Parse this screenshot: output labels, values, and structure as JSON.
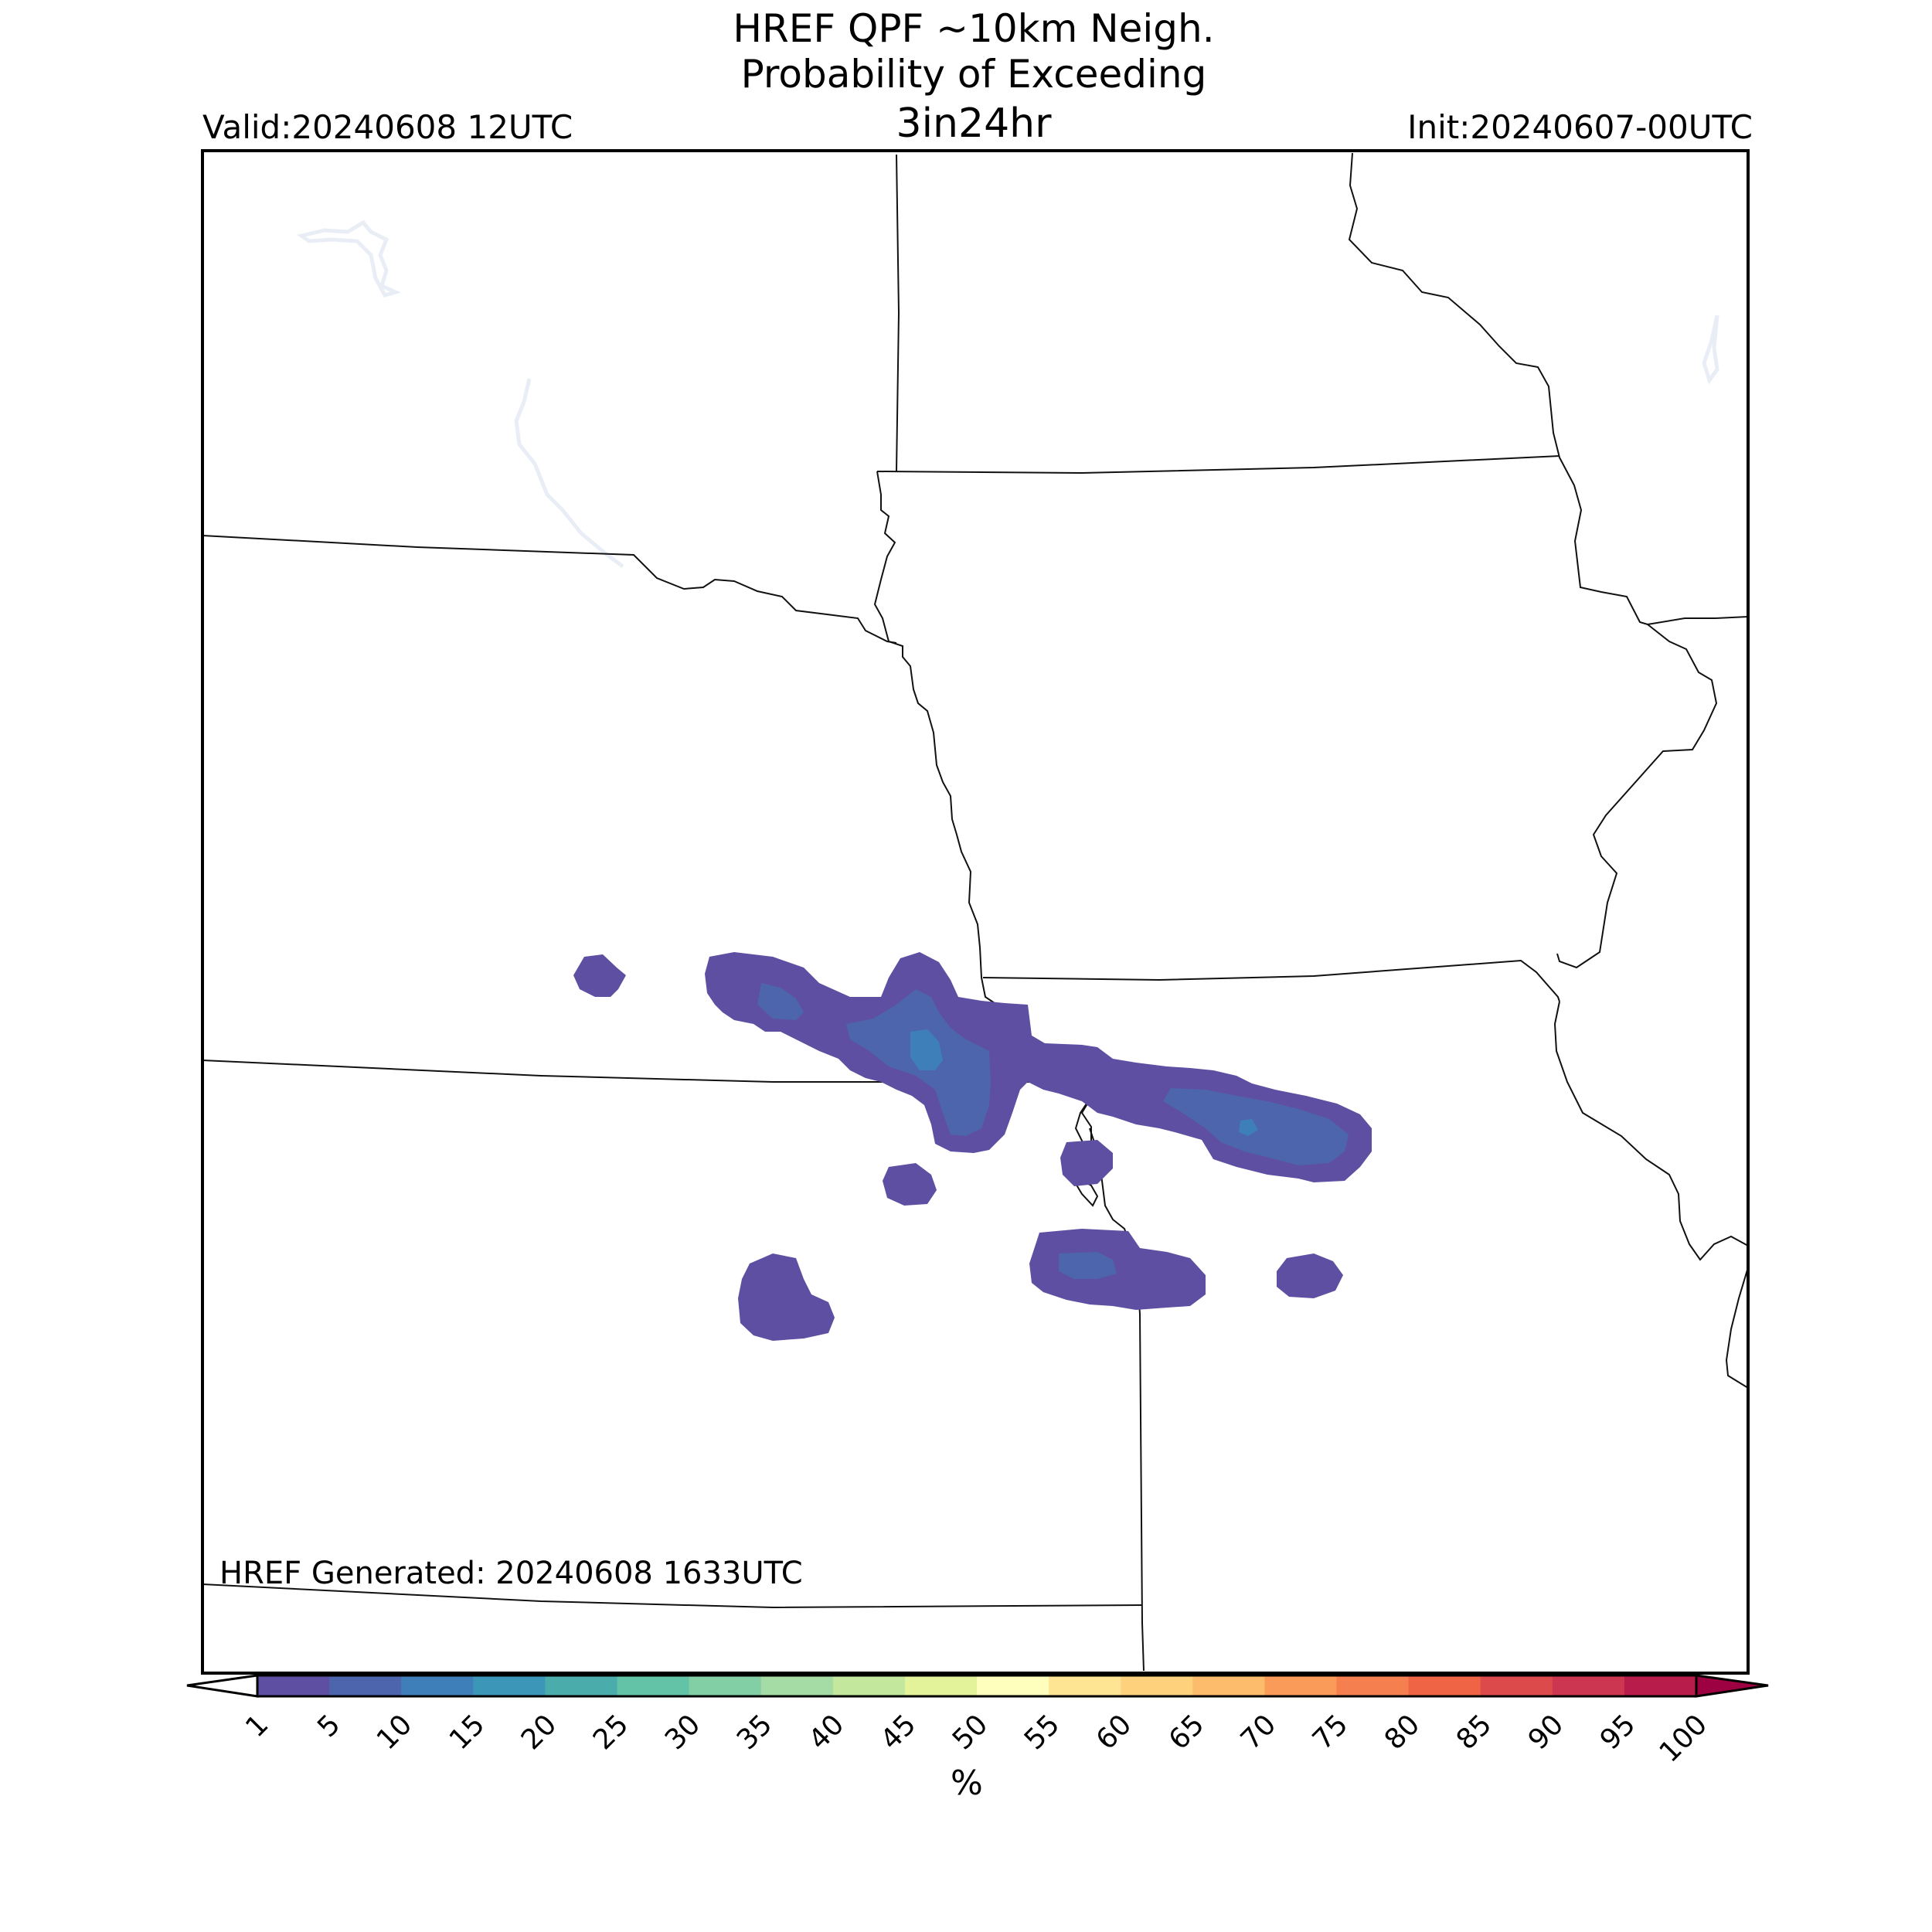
{
  "title": {
    "line1": "HREF QPF ~10km Neigh.",
    "line2": "Probability of Exceeding",
    "line3": "3in24hr"
  },
  "valid_text": "Valid:20240608 12UTC",
  "init_text": "Init:20240607-00UTC",
  "generated_text": "HREF Generated: 20240608 1633UTC",
  "colorbar": {
    "units": "%",
    "ticks": [
      "1",
      "5",
      "10",
      "15",
      "20",
      "25",
      "30",
      "35",
      "40",
      "45",
      "50",
      "55",
      "60",
      "65",
      "70",
      "75",
      "80",
      "85",
      "90",
      "95",
      "100"
    ],
    "colors": [
      "#5e4fa2",
      "#4d65ad",
      "#3f7fb9",
      "#3c96b8",
      "#4bacac",
      "#63c3a6",
      "#83cfa5",
      "#a5dba4",
      "#c4e79e",
      "#e2f399",
      "#fefebd",
      "#fee593",
      "#fed17d",
      "#fdbb6c",
      "#fb9b5a",
      "#f67f4f",
      "#ee6445",
      "#dd4a4c",
      "#cd3650",
      "#b71c4a",
      "#9e0142"
    ],
    "extend_min_color": "#ffffff",
    "extend_max_color": "#9e0142"
  },
  "legend_colors": {
    "prob_1": "#5e4fa2",
    "prob_5": "#4d65ad",
    "prob_10": "#3f7fb9"
  }
}
